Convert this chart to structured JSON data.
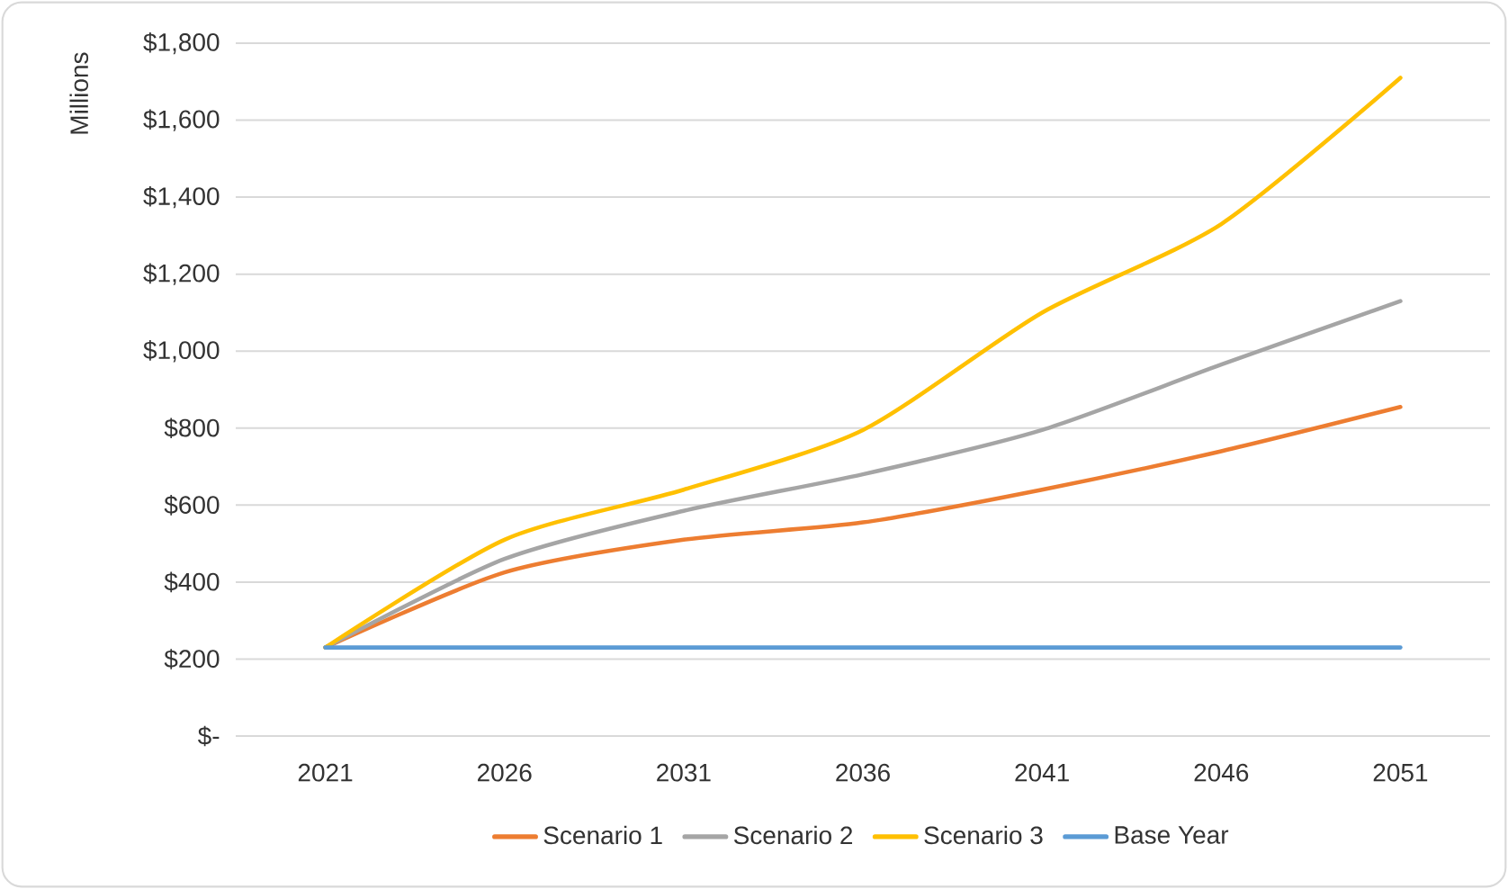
{
  "chart_data": {
    "type": "line",
    "ylabel": "Millions",
    "categories": [
      "2021",
      "2026",
      "2031",
      "2036",
      "2041",
      "2046",
      "2051"
    ],
    "series": [
      {
        "name": "Scenario 1",
        "color": "#ed7d31",
        "values": [
          230,
          425,
          510,
          555,
          640,
          740,
          855
        ]
      },
      {
        "name": "Scenario 2",
        "color": "#a5a5a5",
        "values": [
          230,
          460,
          585,
          680,
          795,
          965,
          1130
        ]
      },
      {
        "name": "Scenario 3",
        "color": "#ffc000",
        "values": [
          230,
          510,
          640,
          795,
          1100,
          1330,
          1710
        ]
      },
      {
        "name": "Base Year",
        "color": "#5b9bd5",
        "values": [
          230,
          230,
          230,
          230,
          230,
          230,
          230
        ]
      }
    ],
    "ylim": [
      0,
      1800
    ],
    "yticks": [
      {
        "value": 0,
        "label": "$-"
      },
      {
        "value": 200,
        "label": "$200"
      },
      {
        "value": 400,
        "label": "$400"
      },
      {
        "value": 600,
        "label": "$600"
      },
      {
        "value": 800,
        "label": "$800"
      },
      {
        "value": 1000,
        "label": "$1,000"
      },
      {
        "value": 1200,
        "label": "$1,200"
      },
      {
        "value": 1400,
        "label": "$1,400"
      },
      {
        "value": 1600,
        "label": "$1,600"
      },
      {
        "value": 1800,
        "label": "$1,800"
      }
    ],
    "grid": "y",
    "legend": "bottom",
    "marker": "none"
  }
}
